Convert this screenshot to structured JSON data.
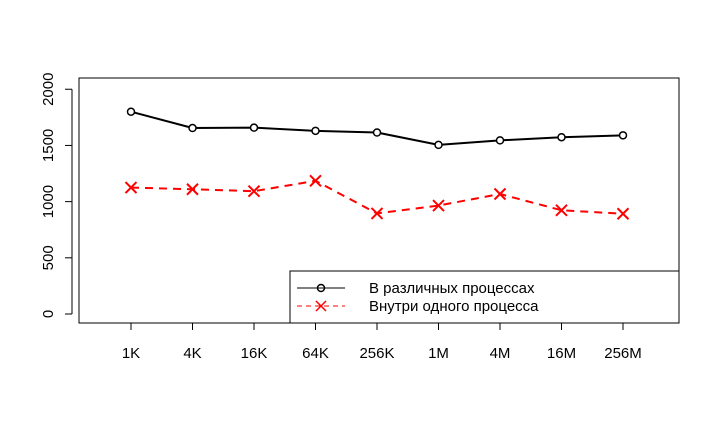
{
  "chart_data": {
    "type": "line",
    "title": "",
    "xlabel": "",
    "ylabel": "",
    "categories": [
      "1K",
      "4K",
      "16K",
      "64K",
      "256K",
      "1M",
      "4M",
      "16M",
      "256M"
    ],
    "ylim": [
      -80,
      2100
    ],
    "yticks": [
      0,
      500,
      1000,
      1500,
      2000
    ],
    "grid": false,
    "legend_position": "bottom-right",
    "series": [
      {
        "name": "В различных процессах",
        "color": "#000000",
        "marker": "circle",
        "line": "solid",
        "values": [
          1800,
          1655,
          1658,
          1630,
          1615,
          1505,
          1545,
          1573,
          1590
        ]
      },
      {
        "name": "Внутри одного процесса",
        "color": "#ff0000",
        "marker": "x",
        "line": "dashed",
        "values": [
          1125,
          1110,
          1093,
          1185,
          895,
          965,
          1068,
          923,
          892
        ]
      }
    ]
  }
}
